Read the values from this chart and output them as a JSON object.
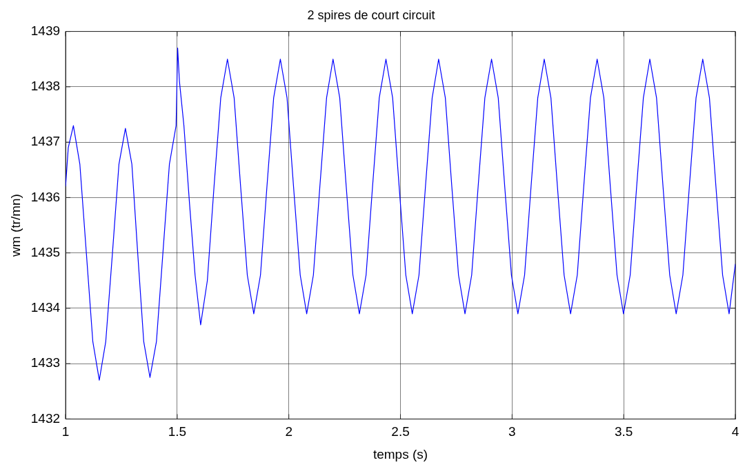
{
  "chart_data": {
    "type": "line",
    "title": "2 spires de court circuit",
    "xlabel": "temps (s)",
    "ylabel": "wm (tr/mn)",
    "xlim": [
      1,
      4
    ],
    "xticks": [
      1,
      1.5,
      2,
      2.5,
      3,
      3.5,
      4
    ],
    "ylim": [
      1432,
      1439
    ],
    "yticks": [
      1432,
      1433,
      1434,
      1435,
      1436,
      1437,
      1438,
      1439
    ],
    "grid": true,
    "legend": false,
    "marker": "none",
    "line_style": "solid",
    "series": [
      {
        "color": "#0000ff",
        "x": [
          1.0,
          1.012,
          1.035,
          1.064,
          1.093,
          1.122,
          1.151,
          1.18,
          1.21,
          1.239,
          1.268,
          1.297,
          1.323,
          1.35,
          1.378,
          1.407,
          1.436,
          1.465,
          1.495,
          1.502,
          1.51,
          1.53,
          1.555,
          1.58,
          1.605,
          1.635,
          1.665,
          1.695,
          1.725,
          1.755,
          1.784,
          1.814,
          1.843,
          1.873,
          1.902,
          1.932,
          1.962,
          1.992,
          2.021,
          2.051,
          2.08,
          2.11,
          2.139,
          2.169,
          2.198,
          2.228,
          2.257,
          2.287,
          2.316,
          2.346,
          2.375,
          2.405,
          2.435,
          2.465,
          2.494,
          2.524,
          2.553,
          2.583,
          2.612,
          2.642,
          2.671,
          2.701,
          2.73,
          2.76,
          2.789,
          2.819,
          2.848,
          2.878,
          2.908,
          2.938,
          2.967,
          2.997,
          3.026,
          3.056,
          3.085,
          3.115,
          3.144,
          3.174,
          3.203,
          3.233,
          3.262,
          3.292,
          3.321,
          3.351,
          3.381,
          3.411,
          3.44,
          3.47,
          3.499,
          3.529,
          3.558,
          3.588,
          3.617,
          3.647,
          3.676,
          3.706,
          3.735,
          3.765,
          3.794,
          3.824,
          3.854,
          3.884,
          3.913,
          3.943,
          3.972,
          4.0
        ],
        "values": [
          1436.2,
          1436.9,
          1437.3,
          1436.6,
          1435.0,
          1433.4,
          1432.7,
          1433.4,
          1435.0,
          1436.6,
          1437.25,
          1436.6,
          1435.0,
          1433.4,
          1432.75,
          1433.4,
          1435.0,
          1436.6,
          1437.3,
          1438.7,
          1438.1,
          1437.3,
          1435.9,
          1434.6,
          1433.7,
          1434.5,
          1436.2,
          1437.8,
          1438.5,
          1437.8,
          1436.2,
          1434.6,
          1433.9,
          1434.6,
          1436.2,
          1437.8,
          1438.5,
          1437.8,
          1436.2,
          1434.6,
          1433.9,
          1434.6,
          1436.2,
          1437.8,
          1438.5,
          1437.8,
          1436.2,
          1434.6,
          1433.9,
          1434.6,
          1436.2,
          1437.8,
          1438.5,
          1437.8,
          1436.2,
          1434.6,
          1433.9,
          1434.6,
          1436.2,
          1437.8,
          1438.5,
          1437.8,
          1436.2,
          1434.6,
          1433.9,
          1434.6,
          1436.2,
          1437.8,
          1438.5,
          1437.8,
          1436.2,
          1434.6,
          1433.9,
          1434.6,
          1436.2,
          1437.8,
          1438.5,
          1437.8,
          1436.2,
          1434.6,
          1433.9,
          1434.6,
          1436.2,
          1437.8,
          1438.5,
          1437.8,
          1436.2,
          1434.6,
          1433.9,
          1434.6,
          1436.2,
          1437.8,
          1438.5,
          1437.8,
          1436.2,
          1434.6,
          1433.9,
          1434.6,
          1436.2,
          1437.8,
          1438.5,
          1437.8,
          1436.2,
          1434.6,
          1433.9,
          1434.8
        ]
      }
    ]
  }
}
